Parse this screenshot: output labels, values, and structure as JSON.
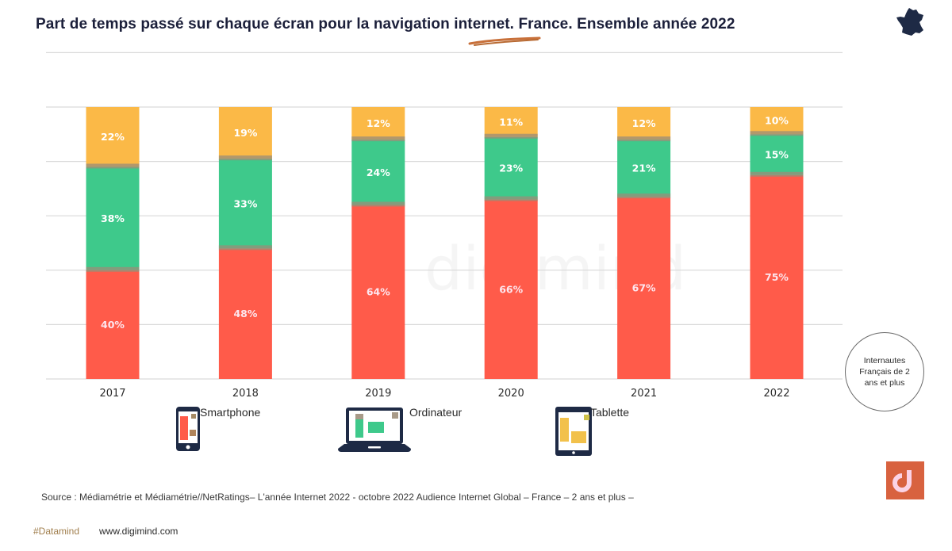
{
  "title": "Part de temps passé sur chaque écran pour la navigation internet. France. Ensemble année 2022",
  "country_icon": "france-map-icon",
  "watermark": "digimind",
  "badge_text": "Internautes Français de 2 ans et plus",
  "source": "Source : Médiamétrie et Médiamétrie//NetRatings– L'année Internet 2022 - octobre 2022 Audience Internet Global – France – 2 ans et plus –",
  "footer": {
    "hashtag": "#Datamind",
    "website": "www.digimind.com"
  },
  "legend": [
    {
      "label": "Smartphone",
      "icon": "smartphone-icon"
    },
    {
      "label": "Ordinateur",
      "icon": "laptop-icon"
    },
    {
      "label": "Tablette",
      "icon": "tablet-icon"
    }
  ],
  "colors": {
    "smartphone": "#ff5b4a",
    "ordinateur": "#3ec98b",
    "tablette": "#fbb947",
    "separator": "#9a8e78",
    "dark": "#1e2a45",
    "logo": "#d8623f"
  },
  "chart_data": {
    "type": "bar",
    "stacked": true,
    "title": "Part de temps passé sur chaque écran pour la navigation internet. France. Ensemble année 2022",
    "categories": [
      "2017",
      "2018",
      "2019",
      "2020",
      "2021",
      "2022"
    ],
    "series": [
      {
        "name": "Smartphone",
        "values": [
          40,
          48,
          64,
          66,
          67,
          75
        ]
      },
      {
        "name": "Ordinateur",
        "values": [
          38,
          33,
          24,
          23,
          21,
          15
        ]
      },
      {
        "name": "Tablette",
        "values": [
          22,
          19,
          12,
          11,
          12,
          10
        ]
      }
    ],
    "value_suffix": "%",
    "xlabel": "",
    "ylabel": "",
    "ylim": [
      0,
      100
    ],
    "grid": true,
    "legend_position": "bottom",
    "y_tick_labels_visible": false
  }
}
